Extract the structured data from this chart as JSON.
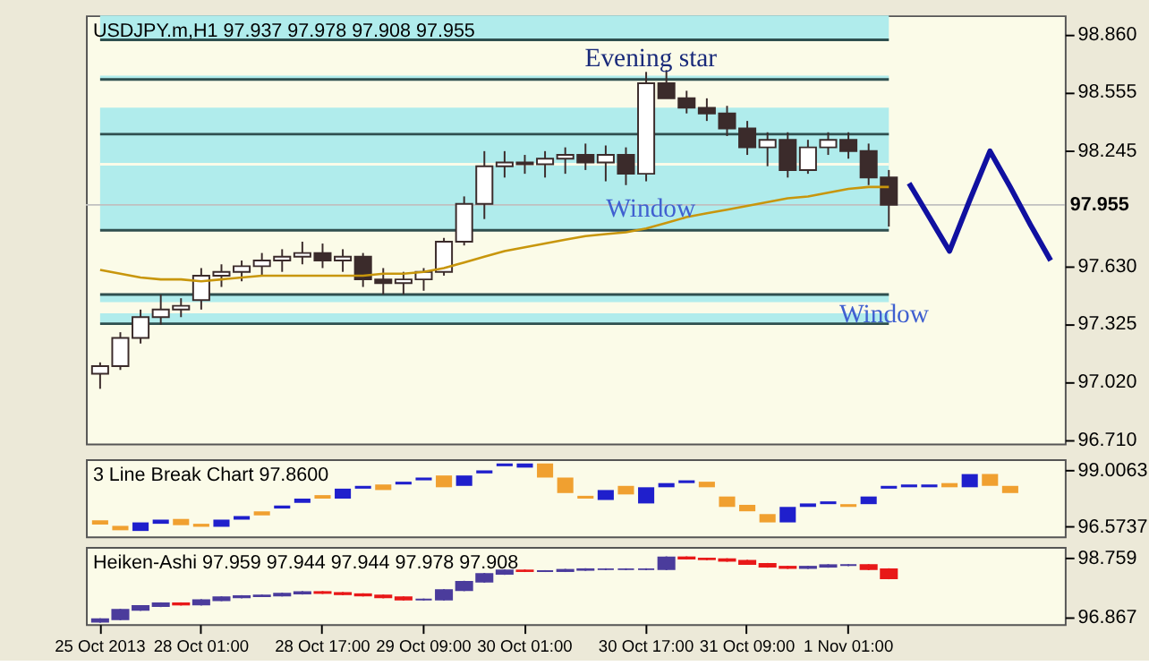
{
  "chart_data": [
    {
      "type": "candlestick",
      "title": "USDJPY.m,H1  97.937 97.978 97.908 97.955",
      "tick_labels": "y",
      "grid": false,
      "ylim": [
        96.69,
        98.96
      ],
      "yticks": [
        {
          "value": 98.86,
          "label": "98.860"
        },
        98.555,
        98.245,
        {
          "value": 97.63,
          "label": "97.630"
        },
        97.325,
        {
          "value": 97.02,
          "label": "97.020"
        },
        {
          "value": 96.71,
          "label": "96.710"
        }
      ],
      "categories": [
        null,
        null,
        null,
        null,
        null,
        null,
        null,
        null,
        null,
        null,
        null,
        null,
        null,
        null,
        null,
        null,
        null,
        null,
        null,
        null,
        null,
        null,
        null,
        null,
        null,
        null,
        null,
        null,
        null,
        null,
        null,
        null,
        null,
        null,
        null,
        null,
        null,
        null,
        null,
        null,
        null,
        null,
        null,
        null,
        null,
        null,
        null,
        null
      ],
      "ohlc": [
        [
          97.06,
          97.12,
          96.98,
          97.1
        ],
        [
          97.1,
          97.28,
          97.08,
          97.25
        ],
        [
          97.25,
          97.4,
          97.22,
          97.36
        ],
        [
          97.36,
          97.48,
          97.32,
          97.4
        ],
        [
          97.4,
          97.46,
          97.36,
          97.42
        ],
        [
          97.45,
          97.62,
          97.4,
          97.58
        ],
        [
          97.58,
          97.64,
          97.52,
          97.6
        ],
        [
          97.6,
          97.66,
          97.55,
          97.63
        ],
        [
          97.63,
          97.7,
          97.58,
          97.66
        ],
        [
          97.66,
          97.72,
          97.6,
          97.68
        ],
        [
          97.68,
          97.76,
          97.64,
          97.7
        ],
        [
          97.7,
          97.75,
          97.62,
          97.66
        ],
        [
          97.66,
          97.72,
          97.6,
          97.68
        ],
        [
          97.68,
          97.7,
          97.52,
          97.56
        ],
        [
          97.56,
          97.62,
          97.48,
          97.54
        ],
        [
          97.54,
          97.6,
          97.48,
          97.56
        ],
        [
          97.56,
          97.62,
          97.5,
          97.6
        ],
        [
          97.6,
          97.78,
          97.58,
          97.76
        ],
        [
          97.76,
          98.0,
          97.74,
          97.96
        ],
        [
          97.96,
          98.24,
          97.88,
          98.16
        ],
        [
          98.16,
          98.24,
          98.1,
          98.18
        ],
        [
          98.18,
          98.22,
          98.12,
          98.17
        ],
        [
          98.17,
          98.24,
          98.1,
          98.2
        ],
        [
          98.2,
          98.26,
          98.12,
          98.22
        ],
        [
          98.22,
          98.28,
          98.14,
          98.18
        ],
        [
          98.18,
          98.27,
          98.08,
          98.22
        ],
        [
          98.22,
          98.26,
          98.06,
          98.12
        ],
        [
          98.12,
          98.66,
          98.08,
          98.6
        ],
        [
          98.6,
          98.67,
          98.52,
          98.52
        ],
        [
          98.52,
          98.56,
          98.44,
          98.47
        ],
        [
          98.47,
          98.52,
          98.4,
          98.44
        ],
        [
          98.44,
          98.48,
          98.32,
          98.36
        ],
        [
          98.36,
          98.4,
          98.22,
          98.26
        ],
        [
          98.26,
          98.34,
          98.16,
          98.3
        ],
        [
          98.3,
          98.34,
          98.1,
          98.14
        ],
        [
          98.14,
          98.3,
          98.12,
          98.26
        ],
        [
          98.26,
          98.34,
          98.22,
          98.3
        ],
        [
          98.3,
          98.34,
          98.2,
          98.24
        ],
        [
          98.24,
          98.28,
          98.06,
          98.1
        ],
        [
          98.1,
          98.14,
          97.84,
          97.955
        ],
        null,
        null,
        null,
        null,
        null,
        null,
        null,
        null
      ],
      "colors": [
        "#ffffff",
        "#ffffff",
        "#ffffff",
        "#ffffff",
        "#ffffff",
        "#ffffff",
        "#ffffff",
        "#ffffff",
        "#ffffff",
        "#ffffff",
        "#ffffff",
        "#3b2b2b",
        "#ffffff",
        "#3b2b2b",
        "#3b2b2b",
        "#ffffff",
        "#ffffff",
        "#ffffff",
        "#ffffff",
        "#ffffff",
        "#ffffff",
        "#3b2b2b",
        "#ffffff",
        "#ffffff",
        "#3b2b2b",
        "#ffffff",
        "#3b2b2b",
        "#ffffff",
        "#3b2b2b",
        "#3b2b2b",
        "#3b2b2b",
        "#3b2b2b",
        "#3b2b2b",
        "#ffffff",
        "#3b2b2b",
        "#ffffff",
        "#ffffff",
        "#3b2b2b",
        "#3b2b2b",
        "#3b2b2b",
        null,
        null,
        null,
        null,
        null,
        null,
        null,
        null
      ],
      "series": [
        {
          "type": "line",
          "color": "#c8960c",
          "values": [
            97.61,
            97.59,
            97.57,
            97.56,
            97.56,
            97.55,
            97.56,
            97.57,
            97.58,
            97.58,
            97.58,
            97.58,
            97.58,
            97.58,
            97.59,
            97.59,
            97.6,
            97.62,
            97.65,
            97.68,
            97.71,
            97.73,
            97.75,
            97.77,
            97.79,
            97.8,
            97.81,
            97.83,
            97.86,
            97.89,
            97.91,
            97.93,
            97.95,
            97.97,
            97.99,
            98.0,
            98.02,
            98.04,
            98.05,
            98.05,
            null,
            null,
            null,
            null,
            null,
            null,
            null,
            null
          ]
        },
        {
          "type": "line",
          "color": "#1010a0",
          "values": [
            null,
            null,
            null,
            null,
            null,
            null,
            null,
            null,
            null,
            null,
            null,
            null,
            null,
            null,
            null,
            null,
            null,
            null,
            null,
            null,
            null,
            null,
            null,
            null,
            null,
            null,
            null,
            null,
            null,
            null,
            null,
            null,
            null,
            null,
            null,
            null,
            null,
            null,
            null,
            null,
            98.07,
            97.89,
            97.71,
            97.98,
            98.24,
            98.05,
            97.85,
            97.66
          ]
        }
      ],
      "bands": [
        {
          "axis": "y",
          "from": 98.83,
          "to": 98.96,
          "color": "#b0ecec"
        },
        {
          "axis": "y",
          "from": 98.62,
          "to": 98.64,
          "color": "#b0ecec"
        },
        {
          "axis": "y",
          "from": 98.33,
          "to": 98.47,
          "color": "#b0ecec"
        },
        {
          "axis": "y",
          "from": 97.82,
          "to": 98.33,
          "color": "#b0ecec"
        },
        {
          "axis": "y",
          "from": 97.44,
          "to": 97.48,
          "color": "#b0ecec"
        },
        {
          "axis": "y",
          "from": 97.325,
          "to": 97.38,
          "color": "#b0ecec"
        }
      ],
      "ref_lines": [
        {
          "axis": "y",
          "value": 98.83,
          "color": "#2f4f4f"
        },
        {
          "axis": "y",
          "value": 98.62,
          "color": "#2f4f4f"
        },
        {
          "axis": "y",
          "value": 98.33,
          "color": "#2f4f4f"
        },
        {
          "axis": "y",
          "value": 98.17,
          "color": "#fbfbe8"
        },
        {
          "axis": "y",
          "value": 97.82,
          "color": "#2f4f4f"
        },
        {
          "axis": "y",
          "value": 97.48,
          "color": "#2f4f4f"
        },
        {
          "axis": "y",
          "value": 97.325,
          "color": "#2f4f4f"
        },
        {
          "axis": "y",
          "value": 97.955,
          "color": "#c0c0c0",
          "label": "97.955"
        }
      ],
      "annotations": [
        "Evening star",
        {
          "text": "Window",
          "y": 97.94
        },
        "Window"
      ]
    },
    {
      "type": "bar",
      "title": "3 Line Break Chart 97.8600",
      "tick_labels": "y",
      "grid": false,
      "ylim": [
        96.15,
        99.49
      ],
      "yticks": [
        99.0063,
        96.5737
      ],
      "categories": [
        null,
        null,
        null,
        null,
        null,
        null,
        null,
        null,
        null,
        null,
        null,
        null,
        null,
        null,
        null,
        null,
        null,
        null,
        null,
        null,
        null,
        null,
        null,
        null,
        null,
        null,
        null,
        null,
        null,
        null,
        null,
        null,
        null,
        null,
        null,
        null,
        null,
        null,
        null,
        null,
        null,
        null,
        null,
        null,
        null,
        null,
        null,
        null
      ],
      "base": [
        96.67,
        96.42,
        96.39,
        96.7,
        96.64,
        96.57,
        96.57,
        96.88,
        97.06,
        97.36,
        97.61,
        97.79,
        97.79,
        98.22,
        98.16,
        98.4,
        98.58,
        98.28,
        98.34,
        98.88,
        99.19,
        99.13,
        98.7,
        98.03,
        97.79,
        97.73,
        97.97,
        97.58,
        98.28,
        98.46,
        98.28,
        97.43,
        97.24,
        96.76,
        96.76,
        97.43,
        97.55,
        97.43,
        97.55,
        98.22,
        98.28,
        98.28,
        98.28,
        98.28,
        98.34,
        98.03,
        null,
        null
      ],
      "values": [
        0.18,
        0.19,
        0.37,
        0.18,
        0.27,
        0.13,
        0.31,
        0.15,
        0.18,
        0.13,
        0.18,
        0.15,
        0.43,
        0.12,
        0.24,
        0.12,
        0.12,
        0.51,
        0.45,
        0.13,
        0.12,
        0.18,
        0.61,
        0.67,
        0.12,
        0.43,
        0.37,
        0.7,
        0.18,
        0.12,
        0.24,
        0.45,
        0.28,
        0.36,
        0.67,
        0.15,
        0.12,
        0.12,
        0.33,
        0.12,
        0.12,
        0.12,
        0.18,
        0.57,
        0.51,
        0.31,
        null,
        null
      ],
      "colors": [
        "#f0a030",
        "#f0a030",
        "#1f1fcc",
        "#1f1fcc",
        "#f0a030",
        "#f0a030",
        "#1f1fcc",
        "#1f1fcc",
        "#f0a030",
        "#1f1fcc",
        "#1f1fcc",
        "#f0a030",
        "#1f1fcc",
        "#1f1fcc",
        "#f0a030",
        "#1f1fcc",
        "#1f1fcc",
        "#f0a030",
        "#1f1fcc",
        "#1f1fcc",
        "#1f1fcc",
        "#1f1fcc",
        "#f0a030",
        "#f0a030",
        "#f0a030",
        "#1f1fcc",
        "#f0a030",
        "#1f1fcc",
        "#1f1fcc",
        "#1f1fcc",
        "#f0a030",
        "#f0a030",
        "#f0a030",
        "#f0a030",
        "#1f1fcc",
        "#1f1fcc",
        "#1f1fcc",
        "#f0a030",
        "#1f1fcc",
        "#1f1fcc",
        "#1f1fcc",
        "#1f1fcc",
        "#f0a030",
        "#1f1fcc",
        "#f0a030",
        "#f0a030",
        null,
        null
      ]
    },
    {
      "type": "candlestick",
      "title": "Heiken-Ashi 97.959 97.944 97.944 97.978 97.908",
      "grid": false,
      "ylim": [
        96.62,
        99.09
      ],
      "yticks": [
        98.759,
        96.867
      ],
      "categories": [
        "25 Oct 2013",
        null,
        null,
        null,
        null,
        "28 Oct 01:00",
        null,
        null,
        null,
        null,
        null,
        "28 Oct 17:00",
        null,
        null,
        null,
        null,
        "29 Oct 09:00",
        null,
        null,
        null,
        null,
        "30 Oct 01:00",
        null,
        null,
        null,
        null,
        null,
        "30 Oct 17:00",
        null,
        null,
        null,
        null,
        "31 Oct 09:00",
        null,
        null,
        null,
        null,
        "1 Nov 01:00",
        null,
        null,
        null,
        null,
        null,
        null,
        null,
        null,
        null,
        null
      ],
      "ohlc": [
        [
          96.7,
          96.81,
          96.67,
          96.78
        ],
        [
          96.78,
          97.11,
          96.75,
          97.08
        ],
        [
          97.08,
          97.23,
          97.05,
          97.2
        ],
        [
          97.2,
          97.32,
          97.17,
          97.29
        ],
        [
          97.29,
          97.32,
          97.22,
          97.25
        ],
        [
          97.25,
          97.42,
          97.22,
          97.39
        ],
        [
          97.39,
          97.51,
          97.36,
          97.48
        ],
        [
          97.48,
          97.55,
          97.45,
          97.52
        ],
        [
          97.52,
          97.57,
          97.49,
          97.54
        ],
        [
          97.54,
          97.63,
          97.51,
          97.6
        ],
        [
          97.6,
          97.68,
          97.57,
          97.65
        ],
        [
          97.65,
          97.68,
          97.59,
          97.62
        ],
        [
          97.62,
          97.65,
          97.55,
          97.58
        ],
        [
          97.58,
          97.61,
          97.51,
          97.54
        ],
        [
          97.54,
          97.57,
          97.45,
          97.48
        ],
        [
          97.48,
          97.51,
          97.38,
          97.41
        ],
        [
          97.41,
          97.44,
          97.38,
          97.41
        ],
        [
          97.41,
          97.74,
          97.38,
          97.71
        ],
        [
          97.71,
          98.01,
          97.68,
          97.98
        ],
        [
          97.98,
          98.26,
          97.95,
          98.23
        ],
        [
          98.23,
          98.37,
          98.2,
          98.34
        ],
        [
          98.34,
          98.37,
          98.29,
          98.32
        ],
        [
          98.32,
          98.35,
          98.29,
          98.32
        ],
        [
          98.32,
          98.39,
          98.29,
          98.36
        ],
        [
          98.36,
          98.41,
          98.33,
          98.38
        ],
        [
          98.38,
          98.41,
          98.35,
          98.38
        ],
        [
          98.38,
          98.41,
          98.35,
          98.38
        ],
        [
          98.38,
          98.41,
          98.35,
          98.38
        ],
        [
          98.38,
          98.79,
          98.35,
          98.76
        ],
        [
          98.76,
          98.79,
          98.69,
          98.72
        ],
        [
          98.72,
          98.75,
          98.67,
          98.7
        ],
        [
          98.7,
          98.73,
          98.62,
          98.65
        ],
        [
          98.65,
          98.68,
          98.52,
          98.55
        ],
        [
          98.55,
          98.58,
          98.43,
          98.46
        ],
        [
          98.46,
          98.49,
          98.39,
          98.42
        ],
        [
          98.42,
          98.49,
          98.39,
          98.46
        ],
        [
          98.46,
          98.54,
          98.43,
          98.51
        ],
        [
          98.51,
          98.54,
          98.48,
          98.51
        ],
        [
          98.51,
          98.54,
          98.35,
          98.38
        ],
        [
          98.38,
          98.41,
          98.06,
          98.09
        ],
        null,
        null,
        null,
        null,
        null,
        null,
        null,
        null
      ],
      "colors": [
        "#4b3c9c",
        "#4b3c9c",
        "#4b3c9c",
        "#4b3c9c",
        "#e81818",
        "#4b3c9c",
        "#4b3c9c",
        "#4b3c9c",
        "#4b3c9c",
        "#4b3c9c",
        "#4b3c9c",
        "#e81818",
        "#e81818",
        "#e81818",
        "#e81818",
        "#e81818",
        "#4b3c9c",
        "#4b3c9c",
        "#4b3c9c",
        "#4b3c9c",
        "#4b3c9c",
        "#e81818",
        "#4b3c9c",
        "#4b3c9c",
        "#4b3c9c",
        "#4b3c9c",
        "#4b3c9c",
        "#4b3c9c",
        "#4b3c9c",
        "#e81818",
        "#e81818",
        "#e81818",
        "#e81818",
        "#e81818",
        "#e81818",
        "#4b3c9c",
        "#4b3c9c",
        "#4b3c9c",
        "#e81818",
        "#e81818",
        null,
        null,
        null,
        null,
        null,
        null,
        null,
        null
      ]
    }
  ]
}
